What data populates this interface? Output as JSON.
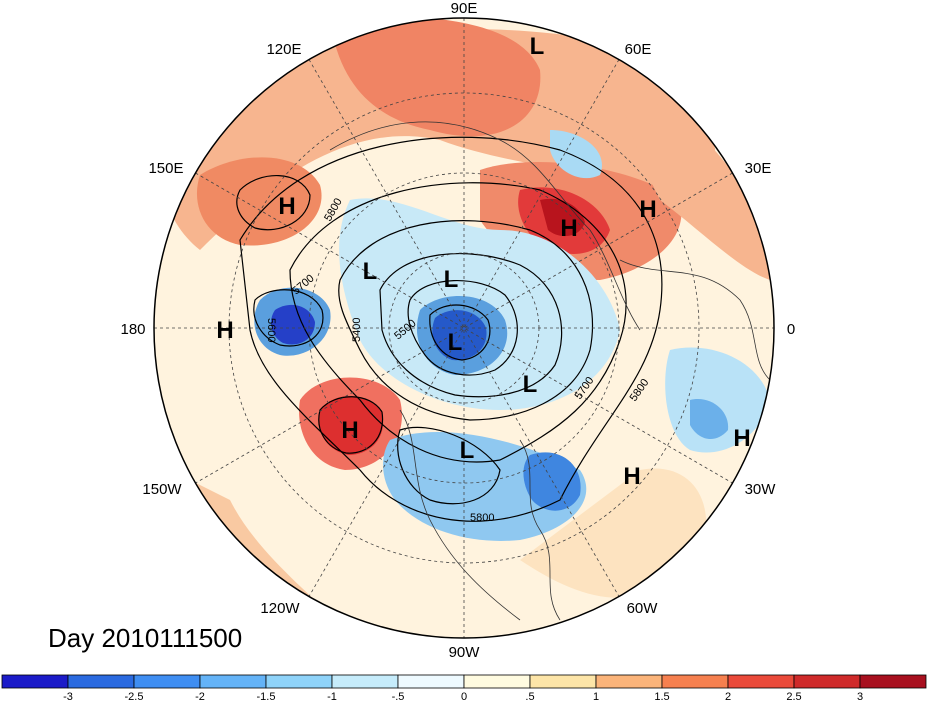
{
  "map": {
    "projection": "north-polar-stereographic",
    "date_label": "Day 2010111500",
    "longitude_labels": [
      "90E",
      "60E",
      "30E",
      "0",
      "30W",
      "60W",
      "90W",
      "120W",
      "150W",
      "180",
      "150E",
      "120E"
    ],
    "pressure_systems": [
      {
        "type": "L",
        "region": "Central Asia"
      },
      {
        "type": "H",
        "region": "Sea of Okhotsk"
      },
      {
        "type": "H",
        "region": "Western Russia"
      },
      {
        "type": "H",
        "region": "Northern Europe"
      },
      {
        "type": "L",
        "region": "Kamchatka"
      },
      {
        "type": "L",
        "region": "East Siberian Sea"
      },
      {
        "type": "H",
        "region": "Dateline Pacific"
      },
      {
        "type": "L",
        "region": "North Pole"
      },
      {
        "type": "L",
        "region": "Greenland"
      },
      {
        "type": "H",
        "region": "Gulf of Alaska"
      },
      {
        "type": "L",
        "region": "Central Canada"
      },
      {
        "type": "H",
        "region": "Central Atlantic"
      },
      {
        "type": "H",
        "region": "Eastern Atlantic"
      }
    ],
    "contour_labels": [
      "5800",
      "5700",
      "5600",
      "5400",
      "5500",
      "5700",
      "5800",
      "5800"
    ],
    "colors": {
      "strong_positive": "#d7191c",
      "positive": "#f4a582",
      "weak_positive": "#fde3c8",
      "neutral": "#fffbe8",
      "weak_negative": "#c6ecf7",
      "negative": "#6baed6",
      "strong_negative": "#2166ac"
    }
  },
  "colorbar": {
    "ticks": [
      "-3",
      "-2.5",
      "-2",
      "-1.5",
      "-1",
      "-.5",
      "0",
      ".5",
      "1",
      "1.5",
      "2",
      "2.5",
      "3"
    ],
    "colors": [
      "#1b1bc8",
      "#2a6ae0",
      "#3f8ef2",
      "#64b3f7",
      "#8fd3f9",
      "#c6ecfb",
      "#eefaff",
      "#fffbe0",
      "#fde5a8",
      "#fbb47a",
      "#f6804f",
      "#ea4a3a",
      "#cf2a2a",
      "#a8101f"
    ]
  }
}
